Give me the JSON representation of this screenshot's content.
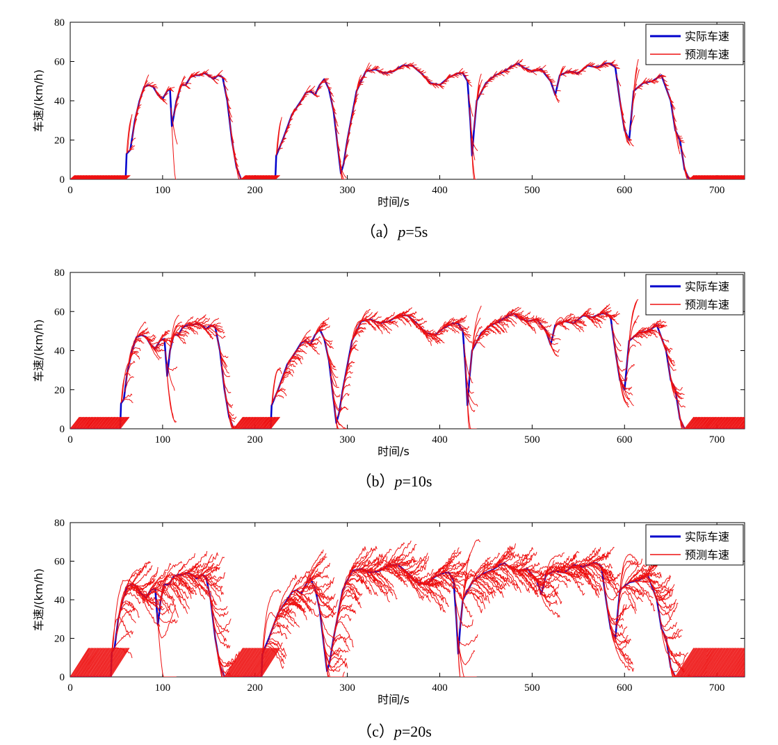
{
  "chart_data": [
    {
      "type": "line",
      "caption": {
        "prefix": "（a）",
        "var": "p",
        "suffix": "=5s"
      },
      "xlabel": "时间/s",
      "ylabel": "车速/(km/h)",
      "xlim": [
        0,
        730
      ],
      "ylim": [
        0,
        80
      ],
      "xticks": [
        0,
        100,
        200,
        300,
        400,
        500,
        600,
        700
      ],
      "yticks": [
        0,
        20,
        40,
        60,
        80
      ],
      "grid": false,
      "legend_position": "top-right",
      "horizon_s": 5,
      "idle_bar_height": 2,
      "series": [
        {
          "name": "实际车速",
          "color": "#0000cc",
          "line_width": 2.5,
          "x": [
            0,
            60,
            61,
            65,
            70,
            75,
            80,
            85,
            90,
            95,
            100,
            105,
            108,
            110,
            115,
            120,
            125,
            130,
            135,
            140,
            145,
            150,
            155,
            160,
            165,
            170,
            175,
            180,
            185,
            190,
            200,
            215,
            222,
            223,
            230,
            240,
            250,
            255,
            260,
            265,
            270,
            275,
            280,
            285,
            290,
            293,
            296,
            300,
            310,
            320,
            330,
            340,
            350,
            360,
            370,
            380,
            390,
            400,
            410,
            420,
            425,
            430,
            433,
            435,
            437,
            440,
            450,
            460,
            470,
            480,
            485,
            490,
            500,
            510,
            520,
            525,
            530,
            540,
            550,
            560,
            570,
            580,
            585,
            590,
            595,
            600,
            605,
            610,
            620,
            630,
            640,
            650,
            655,
            660,
            665,
            670,
            680,
            730
          ],
          "y": [
            0,
            0,
            13,
            15,
            30,
            40,
            47,
            48,
            47,
            43,
            41,
            45,
            46,
            27,
            40,
            48,
            48,
            52,
            53,
            53,
            54,
            53,
            51,
            53,
            52,
            40,
            20,
            6,
            0,
            0,
            0,
            0,
            0,
            12,
            20,
            33,
            40,
            44,
            45,
            43,
            48,
            51,
            46,
            35,
            15,
            3,
            8,
            20,
            45,
            55,
            56,
            54,
            55,
            58,
            58,
            54,
            49,
            48,
            52,
            54,
            54,
            50,
            30,
            12,
            25,
            40,
            49,
            53,
            55,
            58,
            59,
            57,
            55,
            56,
            50,
            43,
            53,
            55,
            54,
            58,
            57,
            59,
            59,
            57,
            40,
            25,
            20,
            45,
            49,
            50,
            53,
            40,
            25,
            20,
            5,
            0,
            0,
            0
          ]
        },
        {
          "name": "预测车速",
          "color": "#ee1111",
          "line_width": 1.3
        }
      ]
    },
    {
      "type": "line",
      "caption": {
        "prefix": "（b）",
        "var": "p",
        "suffix": "=10s"
      },
      "xlabel": "时间/s",
      "ylabel": "车速/(km/h)",
      "xlim": [
        0,
        730
      ],
      "ylim": [
        0,
        80
      ],
      "xticks": [
        0,
        100,
        200,
        300,
        400,
        500,
        600,
        700
      ],
      "yticks": [
        0,
        20,
        40,
        60,
        80
      ],
      "grid": false,
      "legend_position": "top-right",
      "horizon_s": 10,
      "idle_bar_height": 6,
      "series": [
        {
          "name": "实际车速",
          "color": "#0000cc",
          "line_width": 2.5,
          "x": [
            0,
            54,
            55,
            58,
            62,
            67,
            72,
            77,
            82,
            87,
            92,
            97,
            102,
            105,
            108,
            112,
            117,
            122,
            127,
            132,
            137,
            142,
            147,
            152,
            157,
            162,
            167,
            172,
            177,
            180,
            190,
            210,
            217,
            218,
            225,
            235,
            245,
            250,
            255,
            260,
            265,
            270,
            275,
            280,
            285,
            288,
            291,
            295,
            305,
            315,
            325,
            335,
            345,
            355,
            365,
            375,
            385,
            395,
            405,
            415,
            420,
            425,
            428,
            430,
            432,
            435,
            445,
            455,
            465,
            475,
            480,
            485,
            495,
            505,
            515,
            520,
            525,
            535,
            545,
            555,
            565,
            575,
            580,
            585,
            590,
            595,
            600,
            605,
            615,
            625,
            635,
            645,
            650,
            655,
            660,
            665,
            675,
            730
          ],
          "y": [
            0,
            0,
            13,
            15,
            30,
            40,
            47,
            48,
            47,
            43,
            41,
            45,
            46,
            27,
            40,
            48,
            48,
            52,
            53,
            53,
            54,
            53,
            51,
            53,
            52,
            40,
            20,
            6,
            0,
            0,
            0,
            0,
            0,
            12,
            20,
            33,
            40,
            44,
            45,
            43,
            48,
            51,
            46,
            35,
            15,
            3,
            8,
            20,
            45,
            55,
            56,
            54,
            55,
            58,
            58,
            54,
            49,
            48,
            52,
            54,
            54,
            50,
            30,
            12,
            25,
            40,
            49,
            53,
            55,
            58,
            59,
            57,
            55,
            56,
            50,
            43,
            53,
            55,
            54,
            58,
            57,
            59,
            59,
            57,
            40,
            25,
            20,
            45,
            49,
            50,
            53,
            40,
            25,
            20,
            5,
            0,
            0,
            0
          ]
        },
        {
          "name": "预测车速",
          "color": "#ee1111",
          "line_width": 1.3
        }
      ]
    },
    {
      "type": "line",
      "caption": {
        "prefix": "（c）",
        "var": "p",
        "suffix": "=20s"
      },
      "xlabel": "时间/s",
      "ylabel": "车速/(km/h)",
      "xlim": [
        0,
        730
      ],
      "ylim": [
        0,
        80
      ],
      "xticks": [
        0,
        100,
        200,
        300,
        400,
        500,
        600,
        700
      ],
      "yticks": [
        0,
        20,
        40,
        60,
        80
      ],
      "grid": false,
      "legend_position": "top-right",
      "horizon_s": 20,
      "idle_bar_height": 15,
      "series": [
        {
          "name": "实际车速",
          "color": "#0000cc",
          "line_width": 2.5,
          "x": [
            0,
            44,
            45,
            48,
            52,
            57,
            62,
            67,
            72,
            77,
            82,
            87,
            92,
            95,
            98,
            102,
            107,
            112,
            117,
            122,
            127,
            132,
            137,
            142,
            147,
            152,
            157,
            162,
            167,
            170,
            180,
            200,
            207,
            208,
            215,
            225,
            235,
            240,
            245,
            250,
            255,
            260,
            265,
            270,
            275,
            278,
            281,
            285,
            295,
            305,
            315,
            325,
            335,
            345,
            355,
            365,
            375,
            385,
            395,
            405,
            410,
            415,
            418,
            420,
            422,
            425,
            435,
            445,
            455,
            465,
            470,
            475,
            485,
            495,
            505,
            510,
            515,
            525,
            535,
            545,
            555,
            565,
            570,
            575,
            580,
            585,
            590,
            595,
            605,
            615,
            625,
            635,
            640,
            645,
            650,
            655,
            665,
            730
          ],
          "y": [
            0,
            0,
            13,
            15,
            30,
            40,
            47,
            48,
            47,
            43,
            41,
            45,
            46,
            27,
            40,
            48,
            48,
            52,
            53,
            53,
            54,
            53,
            51,
            53,
            52,
            40,
            20,
            6,
            0,
            0,
            0,
            0,
            0,
            12,
            20,
            33,
            40,
            44,
            45,
            43,
            48,
            51,
            46,
            35,
            15,
            3,
            8,
            20,
            45,
            55,
            56,
            54,
            55,
            58,
            58,
            54,
            49,
            48,
            52,
            54,
            54,
            50,
            30,
            12,
            25,
            40,
            49,
            53,
            55,
            58,
            59,
            57,
            55,
            56,
            50,
            43,
            53,
            55,
            54,
            58,
            57,
            59,
            59,
            57,
            40,
            25,
            20,
            45,
            49,
            50,
            53,
            40,
            25,
            20,
            5,
            0,
            0,
            0
          ]
        },
        {
          "name": "预测车速",
          "color": "#ee1111",
          "line_width": 1.3
        }
      ]
    }
  ]
}
